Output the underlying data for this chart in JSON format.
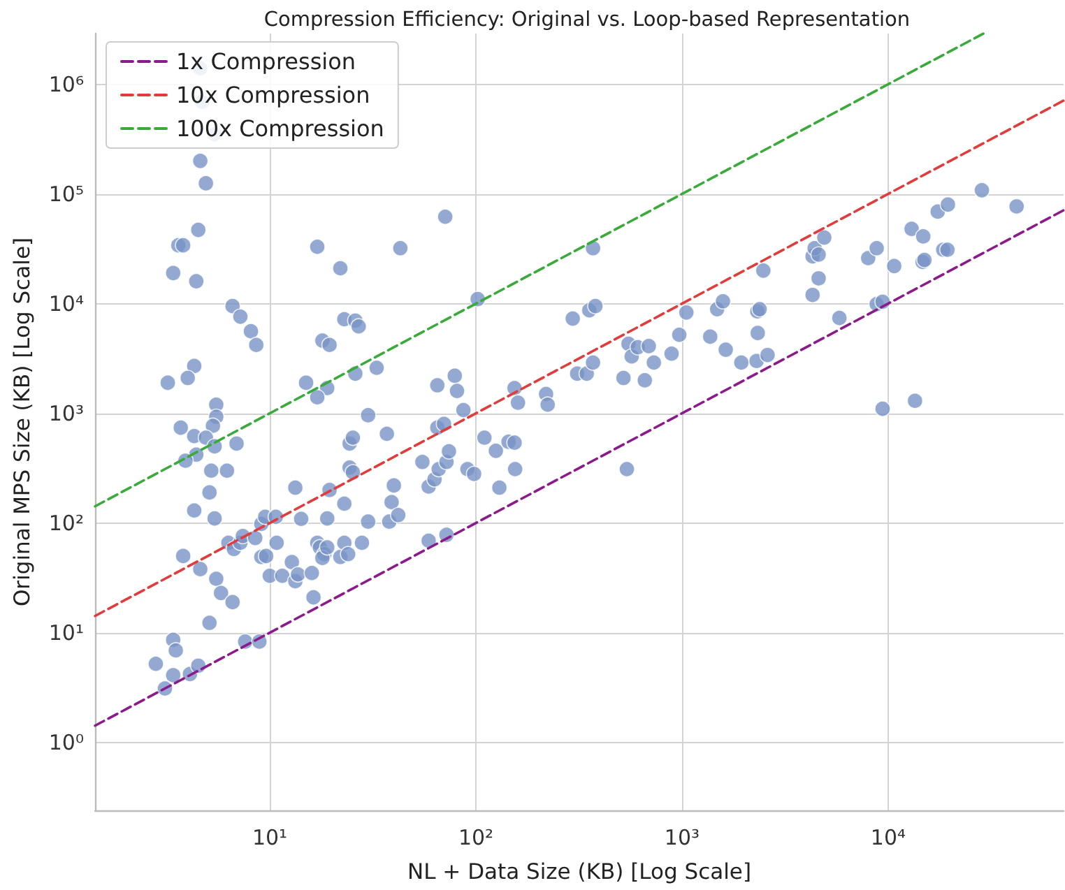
{
  "chart_data": {
    "type": "scatter",
    "title": "Compression Efficiency: Original vs. Loop-based Representation",
    "xlabel": "NL + Data Size (KB) [Log Scale]",
    "ylabel": "Original MPS Size (KB) [Log Scale]",
    "log": "xy",
    "grid": true,
    "legend": "top left",
    "xlim": [
      1.42,
      71000
    ],
    "ylim": [
      0.24,
      2900000
    ],
    "xticks": [
      {
        "value": 10,
        "label": "10¹"
      },
      {
        "value": 100,
        "label": "10²"
      },
      {
        "value": 1000,
        "label": "10³"
      },
      {
        "value": 10000,
        "label": "10⁴"
      }
    ],
    "yticks": [
      {
        "value": 1,
        "label": "10⁰"
      },
      {
        "value": 10,
        "label": "10¹"
      },
      {
        "value": 100,
        "label": "10²"
      },
      {
        "value": 1000,
        "label": "10³"
      },
      {
        "value": 10000,
        "label": "10⁴"
      },
      {
        "value": 100000,
        "label": "10⁵"
      },
      {
        "value": 1000000,
        "label": "10⁶"
      }
    ],
    "series": [
      {
        "color": "#7893c5",
        "marker": "circle",
        "x": [
          4.6,
          4.7,
          5.4,
          4.6,
          4.9,
          4.5,
          3.6,
          3.8,
          3.4,
          4.4,
          17,
          43,
          71,
          22,
          102,
          370,
          6.6,
          7.2,
          8.1,
          8.6,
          23,
          26,
          27,
          18,
          19.5,
          33,
          26,
          15,
          19,
          17,
          4.3,
          4.0,
          3.2,
          5.5,
          5.5,
          5.3,
          3.7,
          4.3,
          4.9,
          4.4,
          3.9,
          5.4,
          6.9,
          5.2,
          6.2,
          5.1,
          4.3,
          5.4,
          3.8,
          4.6,
          5.5,
          5.8,
          6.6,
          5.1,
          3.4,
          3.5,
          2.8,
          3.4,
          3.1,
          4.1,
          4.5,
          7.6,
          8.9,
          6.3,
          6.7,
          7.2,
          7.4,
          8.5,
          9.1,
          9.5,
          9.1,
          9.6,
          10,
          10.7,
          10.8,
          11.5,
          12.8,
          13.3,
          13.7,
          13.3,
          14.2,
          16,
          16.3,
          17,
          17.5,
          18.4,
          18,
          19,
          19,
          19.5,
          22,
          23,
          24,
          28,
          23,
          30,
          24.4,
          25.3,
          24.4,
          25.3,
          30,
          37,
          40,
          39,
          38,
          42,
          55,
          59,
          59,
          63,
          66,
          65,
          70,
          72,
          74,
          72,
          65,
          79,
          81,
          87,
          91,
          98,
          110,
          125,
          130,
          144,
          154,
          154,
          160,
          155,
          219,
          223,
          295,
          355,
          380,
          310,
          345,
          370,
          540,
          520,
          550,
          570,
          610,
          690,
          660,
          730,
          890,
          970,
          1050,
          1370,
          1480,
          1580,
          1630,
          1940,
          2300,
          2330,
          2320,
          2380,
          2480,
          2600,
          4300,
          4600,
          4300,
          4400,
          4600,
          4900,
          5800,
          8000,
          8800,
          8800,
          9400,
          9400,
          10700,
          13000,
          13500,
          14800,
          14700,
          15000,
          17400,
          19500,
          18500,
          19400,
          28500,
          42000
        ],
        "values": [
          1400000,
          690000,
          350000,
          200000,
          125000,
          47000,
          34000,
          34000,
          19000,
          16000,
          33000,
          32000,
          62000,
          21000,
          11000,
          32000,
          9500,
          7600,
          5600,
          4200,
          7200,
          7000,
          6200,
          4600,
          4200,
          2600,
          2300,
          1900,
          1700,
          1400,
          2700,
          2100,
          1900,
          1200,
          930,
          770,
          740,
          620,
          600,
          420,
          370,
          500,
          530,
          300,
          300,
          190,
          130,
          110,
          50,
          38,
          31,
          23,
          19,
          12.3,
          8.6,
          6.9,
          5.2,
          4.1,
          3.1,
          4.2,
          5.0,
          8.3,
          8.3,
          66,
          58,
          66,
          76,
          73,
          98,
          114,
          49,
          50,
          33,
          114,
          66,
          33,
          44,
          29.5,
          34,
          210,
          109,
          35,
          21,
          66,
          60,
          52,
          48,
          60,
          110,
          200,
          49,
          66,
          52,
          66,
          150,
          103,
          530,
          600,
          320,
          290,
          960,
          650,
          220,
          155,
          103,
          118,
          360,
          215,
          69,
          250,
          310,
          740,
          800,
          360,
          450,
          78,
          1800,
          2200,
          1600,
          1070,
          310,
          280,
          600,
          455,
          210,
          550,
          540,
          1700,
          1250,
          310,
          1500,
          1200,
          7300,
          8700,
          9500,
          2300,
          2300,
          2900,
          310,
          2100,
          4300,
          3300,
          4000,
          4100,
          2000,
          2900,
          3500,
          5200,
          8300,
          5000,
          8900,
          10500,
          3800,
          2900,
          3000,
          5400,
          8500,
          8900,
          20000,
          3400,
          12000,
          17000,
          27000,
          32000,
          28000,
          40000,
          7400,
          26000,
          32000,
          9900,
          10400,
          1100,
          22000,
          48000,
          1300,
          41000,
          24000,
          25000,
          69000,
          80000,
          31000,
          31000,
          108000,
          77000
        ]
      },
      {
        "type": "line",
        "name": "1x Compression",
        "color": "#8b1a8b",
        "line_style": "dashed",
        "marker": "none",
        "x": [
          1.42,
          71000
        ],
        "values": [
          1.42,
          71000
        ]
      },
      {
        "type": "line",
        "name": "10x Compression",
        "color": "#e03c3c",
        "line_style": "dashed",
        "marker": "none",
        "x": [
          1.42,
          71000
        ],
        "values": [
          14.2,
          710000
        ]
      },
      {
        "type": "line",
        "name": "100x Compression",
        "color": "#3aaa3a",
        "line_style": "dashed",
        "marker": "none",
        "x": [
          1.42,
          29000
        ],
        "values": [
          142,
          2900000
        ]
      }
    ]
  }
}
